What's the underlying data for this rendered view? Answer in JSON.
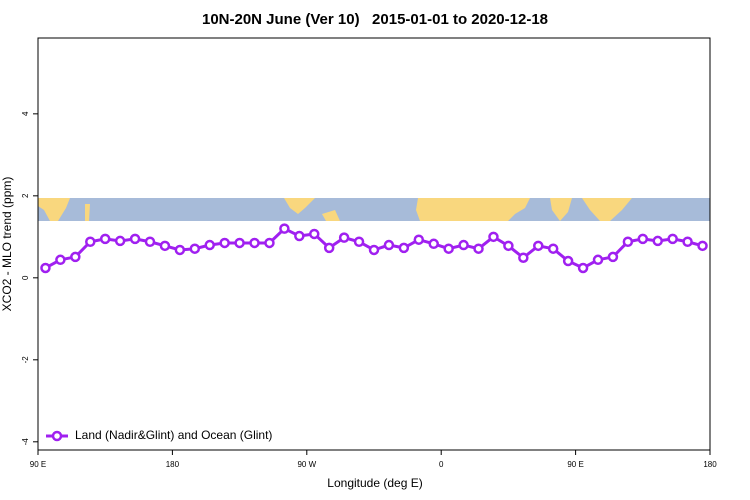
{
  "chart_data": {
    "type": "line",
    "title": "10N-20N June (Ver 10)   2015-01-01 to 2020-12-18",
    "x_label": "Longitude (deg E)",
    "y_label": "XCO2 - MLO trend (ppm)",
    "x": [
      95,
      105,
      115,
      125,
      135,
      145,
      155,
      165,
      175,
      185,
      195,
      205,
      215,
      225,
      235,
      245,
      255,
      265,
      275,
      285,
      295,
      305,
      315,
      325,
      335,
      345,
      355,
      365,
      375,
      385,
      395,
      405,
      415,
      425,
      435,
      445,
      455,
      465,
      475,
      485,
      495,
      505,
      515,
      525,
      535
    ],
    "series": [
      {
        "name": "Land (Nadir&Glint) and Ocean (Glint)",
        "color": "#a020f0",
        "values": [
          0.24,
          0.44,
          0.51,
          0.88,
          0.95,
          0.9,
          0.95,
          0.88,
          0.78,
          0.68,
          0.71,
          0.8,
          0.85,
          0.85,
          0.85,
          0.85,
          1.2,
          1.02,
          1.07,
          0.73,
          0.98,
          0.88,
          0.68,
          0.8,
          0.73,
          0.93,
          0.83,
          0.71,
          0.8,
          0.71,
          1.0,
          0.78,
          0.49,
          0.78,
          0.71,
          0.41,
          0.24,
          0.44,
          0.51,
          0.88,
          0.95,
          0.9,
          0.95,
          0.88,
          0.78
        ]
      }
    ],
    "xlim": [
      90,
      540
    ],
    "xticks": [
      {
        "value": 90,
        "label": "90 E"
      },
      {
        "value": 180,
        "label": "180"
      },
      {
        "value": 270,
        "label": "90 W"
      },
      {
        "value": 360,
        "label": "0"
      },
      {
        "value": 450,
        "label": "90 E"
      },
      {
        "value": 540,
        "label": "180"
      }
    ],
    "ylim": [
      -4.2,
      5.85
    ],
    "yticks": [
      -4,
      -2,
      0,
      2,
      4
    ],
    "grid": false,
    "legend": "bottom-left"
  }
}
